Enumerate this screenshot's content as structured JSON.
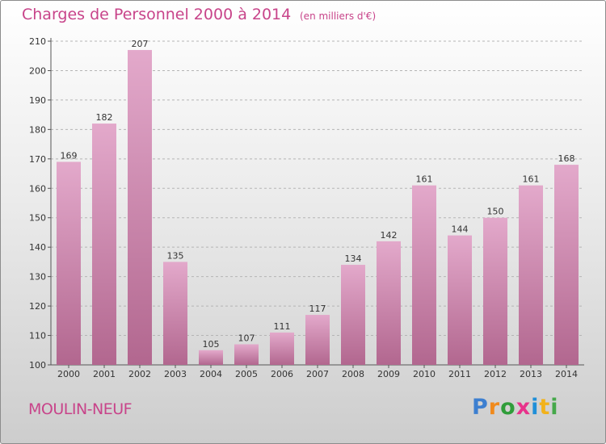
{
  "header": {
    "title": "Charges de Personnel 2000 à 2014",
    "subtitle": "(en milliers d'€)"
  },
  "footer": {
    "place": "MOULIN-NEUF",
    "logo": {
      "text": "Proxiti",
      "letter_colors": [
        "#3d7fd0",
        "#f08a1c",
        "#2f9d3a",
        "#e8328b",
        "#1f8fd8",
        "#f2b21b",
        "#45a84a"
      ]
    }
  },
  "colors": {
    "accent": "#c8448a",
    "bar_top": "#e3a9cb",
    "bar_bottom": "#b2678f",
    "grid": "#b5b5b5",
    "axis_text": "#333333"
  },
  "chart_data": {
    "type": "bar",
    "categories": [
      "2000",
      "2001",
      "2002",
      "2003",
      "2004",
      "2005",
      "2006",
      "2007",
      "2008",
      "2009",
      "2010",
      "2011",
      "2012",
      "2013",
      "2014"
    ],
    "values": [
      169,
      182,
      207,
      135,
      105,
      107,
      111,
      117,
      134,
      142,
      161,
      144,
      150,
      161,
      168
    ],
    "data_labels": [
      "169",
      "182",
      "207",
      "135",
      "105",
      "107",
      "111",
      "117",
      "134",
      "142",
      "161",
      "144",
      "150",
      "161",
      "168"
    ],
    "ylim": [
      100,
      210
    ],
    "yticks": [
      100,
      110,
      120,
      130,
      140,
      150,
      160,
      170,
      180,
      190,
      200,
      210
    ],
    "grid": true,
    "legend": "none"
  }
}
